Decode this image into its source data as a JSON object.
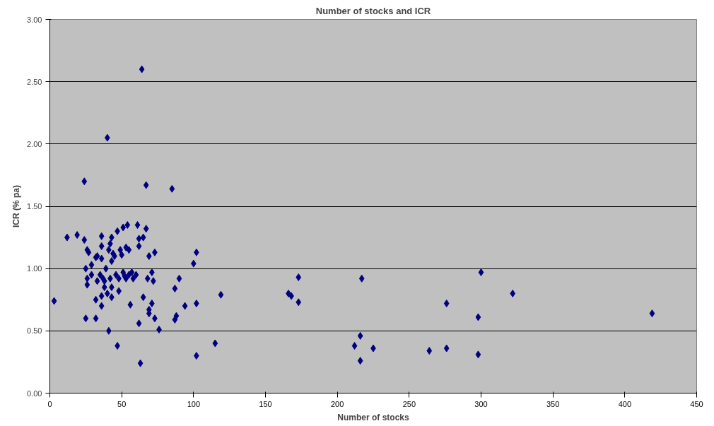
{
  "chart_data": {
    "type": "scatter",
    "title": "Number of stocks and ICR",
    "xlabel": "Number of stocks",
    "ylabel": "ICR (% pa)",
    "x": [
      3,
      12,
      19,
      24,
      24,
      25,
      25,
      26,
      26,
      26,
      27,
      29,
      29,
      32,
      32,
      32,
      33,
      33,
      35,
      36,
      36,
      36,
      36,
      36,
      37,
      38,
      38,
      39,
      40,
      40,
      41,
      41,
      42,
      42,
      43,
      43,
      43,
      43,
      44,
      45,
      46,
      47,
      47,
      48,
      48,
      49,
      50,
      51,
      51,
      52,
      53,
      53,
      54,
      55,
      55,
      56,
      57,
      58,
      60,
      61,
      62,
      62,
      62,
      63,
      64,
      65,
      65,
      67,
      67,
      68,
      69,
      69,
      69,
      71,
      71,
      72,
      73,
      73,
      76,
      85,
      87,
      87,
      88,
      90,
      94,
      100,
      102,
      102,
      102,
      115,
      119,
      166,
      168,
      173,
      173,
      212,
      216,
      216,
      217,
      225,
      264,
      276,
      276,
      298,
      298,
      300,
      322,
      419
    ],
    "series": [
      {
        "color": "#000080",
        "values": [
          0.74,
          1.25,
          1.27,
          1.7,
          1.23,
          0.6,
          1.0,
          1.15,
          0.92,
          0.87,
          1.13,
          0.95,
          1.03,
          0.75,
          0.6,
          1.09,
          1.1,
          0.9,
          0.95,
          1.26,
          1.18,
          1.08,
          0.78,
          0.7,
          0.92,
          0.9,
          0.85,
          1.0,
          2.05,
          0.8,
          0.5,
          1.15,
          1.2,
          0.92,
          1.25,
          1.06,
          0.85,
          0.77,
          1.12,
          1.1,
          0.95,
          1.3,
          0.38,
          0.92,
          0.82,
          1.15,
          1.11,
          1.33,
          0.97,
          0.94,
          1.17,
          0.92,
          1.35,
          1.15,
          0.95,
          0.71,
          0.97,
          0.92,
          0.95,
          1.35,
          1.24,
          1.18,
          0.56,
          0.24,
          2.6,
          1.25,
          0.77,
          1.67,
          1.32,
          0.92,
          1.1,
          0.67,
          0.64,
          0.97,
          0.72,
          0.9,
          1.13,
          0.6,
          0.51,
          1.64,
          0.84,
          0.59,
          0.62,
          0.92,
          0.7,
          1.04,
          1.13,
          0.72,
          0.3,
          0.4,
          0.79,
          0.8,
          0.78,
          0.93,
          0.73,
          0.38,
          0.46,
          0.26,
          0.92,
          0.36,
          0.34,
          0.72,
          0.36,
          0.61,
          0.31,
          0.97,
          0.8,
          0.64
        ]
      }
    ],
    "xlim": [
      0,
      450
    ],
    "xticks": [
      0,
      50,
      100,
      150,
      200,
      250,
      300,
      350,
      400,
      450
    ],
    "ylim": [
      0,
      3
    ],
    "yticks": [
      {
        "value": 0,
        "label": "0.00"
      },
      {
        "value": 0.5,
        "label": "0.50"
      },
      {
        "value": 1,
        "label": "1.00"
      },
      {
        "value": 1.5,
        "label": "1.50"
      },
      {
        "value": 2,
        "label": "2.00"
      },
      {
        "value": 2.5,
        "label": "2.50"
      },
      {
        "value": 3,
        "label": "3.00"
      }
    ],
    "grid": "y",
    "marker": "diamond"
  }
}
